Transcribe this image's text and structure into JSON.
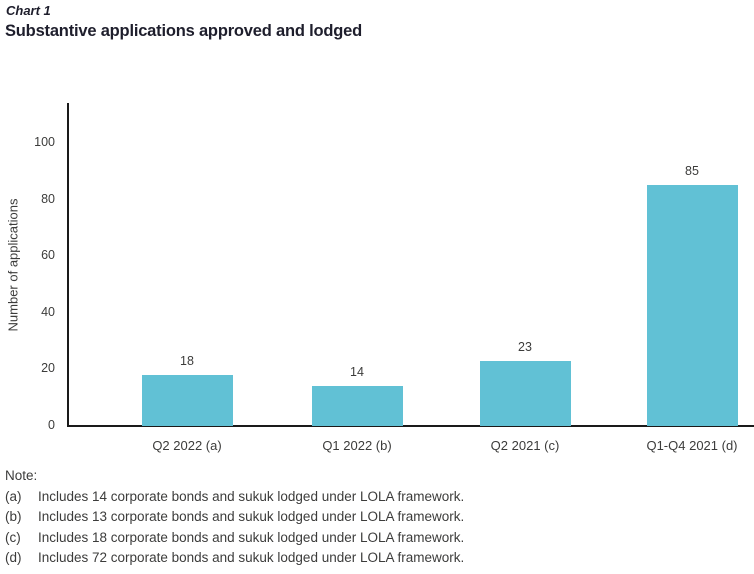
{
  "header": {
    "kicker": "Chart 1",
    "title": "Substantive applications approved and lodged"
  },
  "chart_data": {
    "type": "bar",
    "categories": [
      "Q2 2022 (a)",
      "Q1 2022 (b)",
      "Q2 2021 (c)",
      "Q1-Q4 2021 (d)"
    ],
    "values": [
      18,
      14,
      23,
      85
    ],
    "value_labels": [
      "18",
      "14",
      "23",
      "85"
    ],
    "title": "Substantive applications approved and lodged",
    "xlabel": "",
    "ylabel": "Number of applications",
    "ylim": [
      0,
      114
    ],
    "yticks": [
      0,
      20,
      40,
      60,
      80,
      100
    ],
    "grid": false,
    "legend_position": "none",
    "bar_color": "#61c1d5"
  },
  "notes": {
    "heading": "Note:",
    "items": [
      {
        "label": "(a)",
        "text": "Includes 14 corporate bonds and sukuk lodged under LOLA framework."
      },
      {
        "label": "(b)",
        "text": "Includes 13 corporate bonds and sukuk lodged under LOLA framework."
      },
      {
        "label": "(c)",
        "text": "Includes 18 corporate bonds and sukuk lodged under LOLA framework."
      },
      {
        "label": "(d)",
        "text": "Includes 72 corporate bonds and sukuk lodged under LOLA framework."
      }
    ]
  },
  "colors": {
    "bar": "#61c1d5",
    "axis": "#1a1a1a",
    "heading_text": "#1e1e2c",
    "body_text": "#3c3c3b"
  }
}
